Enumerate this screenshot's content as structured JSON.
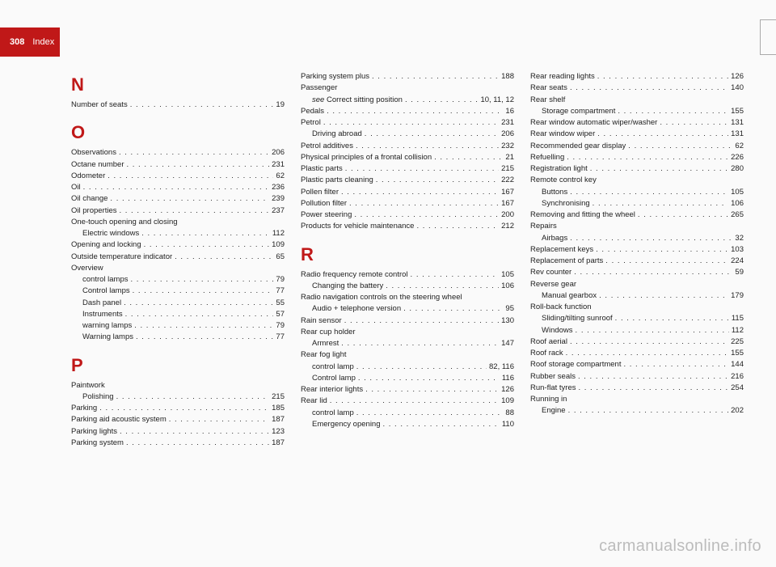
{
  "tab": {
    "page_number": "308",
    "section": "Index"
  },
  "watermark": "carmanualsonline.info",
  "columns": [
    {
      "groups": [
        {
          "letter": "N",
          "first": true,
          "entries": [
            {
              "label": "Number of seats",
              "page": "19"
            }
          ]
        },
        {
          "letter": "O",
          "entries": [
            {
              "label": "Observations",
              "page": "206"
            },
            {
              "label": "Octane number",
              "page": "231"
            },
            {
              "label": "Odometer",
              "page": "62"
            },
            {
              "label": "Oil",
              "page": "236"
            },
            {
              "label": "Oil change",
              "page": "239"
            },
            {
              "label": "Oil properties",
              "page": "237"
            },
            {
              "label": "One-touch opening and closing",
              "no_page": true
            },
            {
              "label": "Electric windows",
              "page": "112",
              "sub": true
            },
            {
              "label": "Opening and locking",
              "page": "109"
            },
            {
              "label": "Outside temperature indicator",
              "page": "65"
            },
            {
              "label": "Overview",
              "no_page": true
            },
            {
              "label": "control lamps",
              "page": "79",
              "sub": true
            },
            {
              "label": "Control lamps",
              "page": "77",
              "sub": true
            },
            {
              "label": "Dash panel",
              "page": "55",
              "sub": true
            },
            {
              "label": "Instruments",
              "page": "57",
              "sub": true
            },
            {
              "label": "warning lamps",
              "page": "79",
              "sub": true
            },
            {
              "label": "Warning lamps",
              "page": "77",
              "sub": true
            }
          ]
        },
        {
          "letter": "P",
          "entries": [
            {
              "label": "Paintwork",
              "no_page": true
            },
            {
              "label": "Polishing",
              "page": "215",
              "sub": true
            },
            {
              "label": "Parking",
              "page": "185"
            },
            {
              "label": "Parking aid acoustic system",
              "page": "187"
            },
            {
              "label": "Parking lights",
              "page": "123"
            },
            {
              "label": "Parking system",
              "page": "187"
            }
          ]
        }
      ]
    },
    {
      "groups": [
        {
          "letter": "",
          "first": true,
          "entries": [
            {
              "label": "Parking system plus",
              "page": "188"
            },
            {
              "label": "Passenger",
              "no_page": true
            },
            {
              "label_html": "<span class='see'>see</span> Correct sitting position",
              "page": "10, 11, 12",
              "sub": true
            },
            {
              "label": "Pedals",
              "page": "16"
            },
            {
              "label": "Petrol",
              "page": "231"
            },
            {
              "label": "Driving abroad",
              "page": "206",
              "sub": true
            },
            {
              "label": "Petrol additives",
              "page": "232"
            },
            {
              "label": "Physical principles of a frontal collision",
              "page": "21"
            },
            {
              "label": "Plastic parts",
              "page": "215"
            },
            {
              "label": "Plastic parts cleaning",
              "page": "222"
            },
            {
              "label": "Pollen filter",
              "page": "167"
            },
            {
              "label": "Pollution filter",
              "page": "167"
            },
            {
              "label": "Power steering",
              "page": "200"
            },
            {
              "label": "Products for vehicle maintenance",
              "page": "212"
            }
          ]
        },
        {
          "letter": "R",
          "entries": [
            {
              "label": "Radio frequency remote control",
              "page": "105"
            },
            {
              "label": "Changing the battery",
              "page": "106",
              "sub": true
            },
            {
              "label": "Radio navigation controls on the steering wheel",
              "no_page": true,
              "wrap": true
            },
            {
              "label": "Audio + telephone version",
              "page": "95",
              "sub": true
            },
            {
              "label": "Rain sensor",
              "page": "130"
            },
            {
              "label": "Rear cup holder",
              "no_page": true
            },
            {
              "label": "Armrest",
              "page": "147",
              "sub": true
            },
            {
              "label": "Rear fog light",
              "no_page": true
            },
            {
              "label": "control lamp",
              "page": "82, 116",
              "sub": true
            },
            {
              "label": "Control lamp",
              "page": "116",
              "sub": true
            },
            {
              "label": "Rear interior lights",
              "page": "126"
            },
            {
              "label": "Rear lid",
              "page": "109"
            },
            {
              "label": "control lamp",
              "page": "88",
              "sub": true
            },
            {
              "label": "Emergency opening",
              "page": "110",
              "sub": true
            }
          ]
        }
      ]
    },
    {
      "groups": [
        {
          "letter": "",
          "first": true,
          "entries": [
            {
              "label": "Rear reading lights",
              "page": "126"
            },
            {
              "label": "Rear seats",
              "page": "140"
            },
            {
              "label": "Rear shelf",
              "no_page": true
            },
            {
              "label": "Storage compartment",
              "page": "155",
              "sub": true
            },
            {
              "label": "Rear window automatic wiper/washer",
              "page": "131"
            },
            {
              "label": "Rear window wiper",
              "page": "131"
            },
            {
              "label": "Recommended gear display",
              "page": "62"
            },
            {
              "label": "Refuelling",
              "page": "226"
            },
            {
              "label": "Registration light",
              "page": "280"
            },
            {
              "label": "Remote control key",
              "no_page": true
            },
            {
              "label": "Buttons",
              "page": "105",
              "sub": true
            },
            {
              "label": "Synchronising",
              "page": "106",
              "sub": true
            },
            {
              "label": "Removing and fitting the wheel",
              "page": "265"
            },
            {
              "label": "Repairs",
              "no_page": true
            },
            {
              "label": "Airbags",
              "page": "32",
              "sub": true
            },
            {
              "label": "Replacement keys",
              "page": "103"
            },
            {
              "label": "Replacement of parts",
              "page": "224"
            },
            {
              "label": "Rev counter",
              "page": "59"
            },
            {
              "label": "Reverse gear",
              "no_page": true
            },
            {
              "label": "Manual gearbox",
              "page": "179",
              "sub": true
            },
            {
              "label": "Roll-back function",
              "no_page": true
            },
            {
              "label": "Sliding/tilting sunroof",
              "page": "115",
              "sub": true
            },
            {
              "label": "Windows",
              "page": "112",
              "sub": true
            },
            {
              "label": "Roof aerial",
              "page": "225"
            },
            {
              "label": "Roof rack",
              "page": "155"
            },
            {
              "label": "Roof storage compartment",
              "page": "144"
            },
            {
              "label": "Rubber seals",
              "page": "216"
            },
            {
              "label": "Run-flat tyres",
              "page": "254"
            },
            {
              "label": "Running in",
              "no_page": true
            },
            {
              "label": "Engine",
              "page": "202",
              "sub": true
            }
          ]
        }
      ]
    }
  ]
}
